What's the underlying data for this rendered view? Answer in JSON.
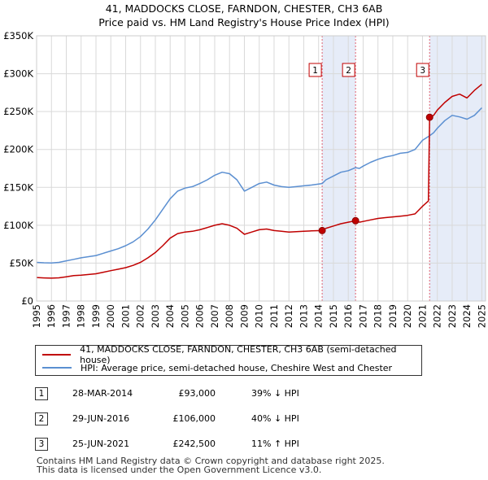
{
  "title_line1": "41, MADDOCKS CLOSE, FARNDON, CHESTER, CH3 6AB",
  "title_line2": "Price paid vs. HM Land Registry's House Price Index (HPI)",
  "chart_data": {
    "type": "line",
    "x_range": [
      1995,
      2025.25
    ],
    "ylim": [
      0,
      350000
    ],
    "y_ticks": [
      0,
      50000,
      100000,
      150000,
      200000,
      250000,
      300000,
      350000
    ],
    "y_tick_labels": [
      "£0",
      "£50K",
      "£100K",
      "£150K",
      "£200K",
      "£250K",
      "£300K",
      "£350K"
    ],
    "x_ticks": [
      1995,
      1996,
      1997,
      1998,
      1999,
      2000,
      2001,
      2002,
      2003,
      2004,
      2005,
      2006,
      2007,
      2008,
      2009,
      2010,
      2011,
      2012,
      2013,
      2014,
      2015,
      2016,
      2017,
      2018,
      2019,
      2020,
      2021,
      2022,
      2023,
      2024,
      2025
    ],
    "grid": true,
    "colors": {
      "property": "#c00000",
      "hpi": "#5b8fd1",
      "marker_line": "#e06070",
      "shade": "#dde6f5"
    },
    "series": [
      {
        "name": "41, MADDOCKS CLOSE, FARNDON, CHESTER, CH3 6AB (semi-detached house)",
        "points": [
          [
            1995.0,
            31000
          ],
          [
            1995.5,
            30500
          ],
          [
            1996.0,
            30200
          ],
          [
            1996.5,
            30600
          ],
          [
            1997.0,
            32000
          ],
          [
            1997.5,
            33500
          ],
          [
            1998.0,
            34000
          ],
          [
            1998.5,
            35000
          ],
          [
            1999.0,
            36000
          ],
          [
            1999.5,
            38000
          ],
          [
            2000.0,
            40000
          ],
          [
            2000.5,
            42000
          ],
          [
            2001.0,
            44000
          ],
          [
            2001.5,
            47000
          ],
          [
            2002.0,
            51000
          ],
          [
            2002.5,
            57000
          ],
          [
            2003.0,
            64000
          ],
          [
            2003.5,
            73000
          ],
          [
            2004.0,
            83000
          ],
          [
            2004.5,
            89000
          ],
          [
            2005.0,
            91000
          ],
          [
            2005.5,
            92000
          ],
          [
            2006.0,
            94000
          ],
          [
            2006.5,
            97000
          ],
          [
            2007.0,
            100000
          ],
          [
            2007.5,
            102000
          ],
          [
            2008.0,
            100000
          ],
          [
            2008.5,
            96000
          ],
          [
            2009.0,
            88000
          ],
          [
            2009.5,
            91000
          ],
          [
            2010.0,
            94000
          ],
          [
            2010.5,
            95000
          ],
          [
            2011.0,
            93000
          ],
          [
            2011.5,
            92000
          ],
          [
            2012.0,
            91000
          ],
          [
            2012.5,
            91500
          ],
          [
            2013.0,
            92000
          ],
          [
            2013.5,
            92500
          ],
          [
            2014.24,
            93000
          ],
          [
            2014.5,
            96000
          ],
          [
            2015.0,
            99000
          ],
          [
            2015.5,
            102000
          ],
          [
            2016.0,
            104000
          ],
          [
            2016.49,
            106000
          ],
          [
            2016.75,
            104000
          ],
          [
            2017.0,
            105000
          ],
          [
            2017.5,
            107000
          ],
          [
            2018.0,
            109000
          ],
          [
            2018.5,
            110000
          ],
          [
            2019.0,
            111000
          ],
          [
            2019.5,
            112000
          ],
          [
            2020.0,
            113000
          ],
          [
            2020.5,
            115000
          ],
          [
            2021.0,
            125000
          ],
          [
            2021.4,
            132000
          ],
          [
            2021.48,
            242500
          ],
          [
            2021.75,
            245000
          ],
          [
            2022.0,
            252000
          ],
          [
            2022.5,
            262000
          ],
          [
            2023.0,
            270000
          ],
          [
            2023.5,
            273000
          ],
          [
            2024.0,
            268000
          ],
          [
            2024.5,
            278000
          ],
          [
            2025.0,
            286000
          ]
        ]
      },
      {
        "name": "HPI: Average price, semi-detached house, Cheshire West and Chester",
        "points": [
          [
            1995.0,
            51000
          ],
          [
            1995.5,
            50500
          ],
          [
            1996.0,
            50200
          ],
          [
            1996.5,
            51000
          ],
          [
            1997.0,
            53000
          ],
          [
            1997.5,
            55000
          ],
          [
            1998.0,
            57000
          ],
          [
            1998.5,
            58500
          ],
          [
            1999.0,
            60000
          ],
          [
            1999.5,
            63000
          ],
          [
            2000.0,
            66000
          ],
          [
            2000.5,
            69000
          ],
          [
            2001.0,
            73000
          ],
          [
            2001.5,
            78000
          ],
          [
            2002.0,
            85000
          ],
          [
            2002.5,
            95000
          ],
          [
            2003.0,
            107000
          ],
          [
            2003.5,
            121000
          ],
          [
            2004.0,
            135000
          ],
          [
            2004.5,
            145000
          ],
          [
            2005.0,
            149000
          ],
          [
            2005.5,
            151000
          ],
          [
            2006.0,
            155000
          ],
          [
            2006.5,
            160000
          ],
          [
            2007.0,
            166000
          ],
          [
            2007.5,
            170000
          ],
          [
            2008.0,
            168000
          ],
          [
            2008.5,
            160000
          ],
          [
            2009.0,
            145000
          ],
          [
            2009.5,
            150000
          ],
          [
            2010.0,
            155000
          ],
          [
            2010.5,
            157000
          ],
          [
            2011.0,
            153000
          ],
          [
            2011.5,
            151000
          ],
          [
            2012.0,
            150000
          ],
          [
            2012.5,
            151000
          ],
          [
            2013.0,
            152000
          ],
          [
            2013.5,
            153000
          ],
          [
            2014.24,
            155000
          ],
          [
            2014.5,
            160000
          ],
          [
            2015.0,
            165000
          ],
          [
            2015.5,
            170000
          ],
          [
            2016.0,
            172000
          ],
          [
            2016.49,
            176000
          ],
          [
            2016.75,
            175000
          ],
          [
            2017.0,
            178000
          ],
          [
            2017.5,
            183000
          ],
          [
            2018.0,
            187000
          ],
          [
            2018.5,
            190000
          ],
          [
            2019.0,
            192000
          ],
          [
            2019.5,
            195000
          ],
          [
            2020.0,
            196000
          ],
          [
            2020.5,
            200000
          ],
          [
            2021.0,
            212000
          ],
          [
            2021.48,
            218000
          ],
          [
            2021.75,
            222000
          ],
          [
            2022.0,
            228000
          ],
          [
            2022.5,
            238000
          ],
          [
            2023.0,
            245000
          ],
          [
            2023.5,
            243000
          ],
          [
            2024.0,
            240000
          ],
          [
            2024.5,
            245000
          ],
          [
            2025.0,
            255000
          ]
        ]
      }
    ],
    "transactions": [
      {
        "label": "1",
        "date": "28-MAR-2014",
        "x": 2014.24,
        "price": 93000,
        "price_label": "£93,000",
        "hpi_change": "39% ↓ HPI"
      },
      {
        "label": "2",
        "date": "29-JUN-2016",
        "x": 2016.49,
        "price": 106000,
        "price_label": "£106,000",
        "hpi_change": "40% ↓ HPI"
      },
      {
        "label": "3",
        "date": "25-JUN-2021",
        "x": 2021.48,
        "price": 242500,
        "price_label": "£242,500",
        "hpi_change": "11% ↑ HPI"
      }
    ],
    "shaded_ranges": [
      [
        2014.24,
        2016.49
      ],
      [
        2021.48,
        2025.25
      ]
    ]
  },
  "legend": {
    "property_label": "41, MADDOCKS CLOSE, FARNDON, CHESTER, CH3 6AB (semi-detached house)",
    "hpi_label": "HPI: Average price, semi-detached house, Cheshire West and Chester"
  },
  "footer_line1": "Contains HM Land Registry data © Crown copyright and database right 2025.",
  "footer_line2": "This data is licensed under the Open Government Licence v3.0."
}
